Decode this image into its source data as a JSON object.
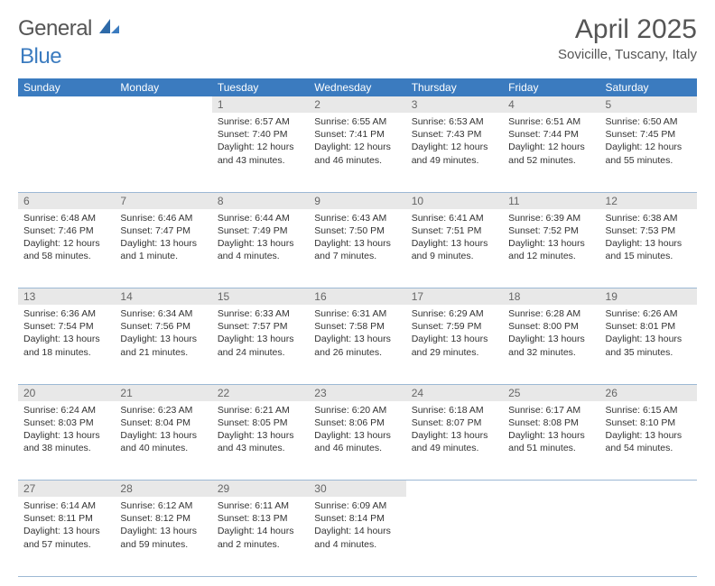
{
  "brand": {
    "part1": "General",
    "part2": "Blue"
  },
  "title": "April 2025",
  "location": "Sovicille, Tuscany, Italy",
  "theme": {
    "header_bg": "#3b7bbf",
    "header_fg": "#ffffff",
    "daynum_bg": "#e8e8e8",
    "daynum_fg": "#666666",
    "rule_color": "#9cb8d4",
    "text_color": "#333333",
    "page_bg": "#ffffff",
    "month_fontsize": 30,
    "dayhdr_fontsize": 12,
    "body_fontsize": 10.5
  },
  "day_headers": [
    "Sunday",
    "Monday",
    "Tuesday",
    "Wednesday",
    "Thursday",
    "Friday",
    "Saturday"
  ],
  "weeks": [
    [
      null,
      null,
      {
        "n": "1",
        "sr": "6:57 AM",
        "ss": "7:40 PM",
        "dl": "12 hours and 43 minutes."
      },
      {
        "n": "2",
        "sr": "6:55 AM",
        "ss": "7:41 PM",
        "dl": "12 hours and 46 minutes."
      },
      {
        "n": "3",
        "sr": "6:53 AM",
        "ss": "7:43 PM",
        "dl": "12 hours and 49 minutes."
      },
      {
        "n": "4",
        "sr": "6:51 AM",
        "ss": "7:44 PM",
        "dl": "12 hours and 52 minutes."
      },
      {
        "n": "5",
        "sr": "6:50 AM",
        "ss": "7:45 PM",
        "dl": "12 hours and 55 minutes."
      }
    ],
    [
      {
        "n": "6",
        "sr": "6:48 AM",
        "ss": "7:46 PM",
        "dl": "12 hours and 58 minutes."
      },
      {
        "n": "7",
        "sr": "6:46 AM",
        "ss": "7:47 PM",
        "dl": "13 hours and 1 minute."
      },
      {
        "n": "8",
        "sr": "6:44 AM",
        "ss": "7:49 PM",
        "dl": "13 hours and 4 minutes."
      },
      {
        "n": "9",
        "sr": "6:43 AM",
        "ss": "7:50 PM",
        "dl": "13 hours and 7 minutes."
      },
      {
        "n": "10",
        "sr": "6:41 AM",
        "ss": "7:51 PM",
        "dl": "13 hours and 9 minutes."
      },
      {
        "n": "11",
        "sr": "6:39 AM",
        "ss": "7:52 PM",
        "dl": "13 hours and 12 minutes."
      },
      {
        "n": "12",
        "sr": "6:38 AM",
        "ss": "7:53 PM",
        "dl": "13 hours and 15 minutes."
      }
    ],
    [
      {
        "n": "13",
        "sr": "6:36 AM",
        "ss": "7:54 PM",
        "dl": "13 hours and 18 minutes."
      },
      {
        "n": "14",
        "sr": "6:34 AM",
        "ss": "7:56 PM",
        "dl": "13 hours and 21 minutes."
      },
      {
        "n": "15",
        "sr": "6:33 AM",
        "ss": "7:57 PM",
        "dl": "13 hours and 24 minutes."
      },
      {
        "n": "16",
        "sr": "6:31 AM",
        "ss": "7:58 PM",
        "dl": "13 hours and 26 minutes."
      },
      {
        "n": "17",
        "sr": "6:29 AM",
        "ss": "7:59 PM",
        "dl": "13 hours and 29 minutes."
      },
      {
        "n": "18",
        "sr": "6:28 AM",
        "ss": "8:00 PM",
        "dl": "13 hours and 32 minutes."
      },
      {
        "n": "19",
        "sr": "6:26 AM",
        "ss": "8:01 PM",
        "dl": "13 hours and 35 minutes."
      }
    ],
    [
      {
        "n": "20",
        "sr": "6:24 AM",
        "ss": "8:03 PM",
        "dl": "13 hours and 38 minutes."
      },
      {
        "n": "21",
        "sr": "6:23 AM",
        "ss": "8:04 PM",
        "dl": "13 hours and 40 minutes."
      },
      {
        "n": "22",
        "sr": "6:21 AM",
        "ss": "8:05 PM",
        "dl": "13 hours and 43 minutes."
      },
      {
        "n": "23",
        "sr": "6:20 AM",
        "ss": "8:06 PM",
        "dl": "13 hours and 46 minutes."
      },
      {
        "n": "24",
        "sr": "6:18 AM",
        "ss": "8:07 PM",
        "dl": "13 hours and 49 minutes."
      },
      {
        "n": "25",
        "sr": "6:17 AM",
        "ss": "8:08 PM",
        "dl": "13 hours and 51 minutes."
      },
      {
        "n": "26",
        "sr": "6:15 AM",
        "ss": "8:10 PM",
        "dl": "13 hours and 54 minutes."
      }
    ],
    [
      {
        "n": "27",
        "sr": "6:14 AM",
        "ss": "8:11 PM",
        "dl": "13 hours and 57 minutes."
      },
      {
        "n": "28",
        "sr": "6:12 AM",
        "ss": "8:12 PM",
        "dl": "13 hours and 59 minutes."
      },
      {
        "n": "29",
        "sr": "6:11 AM",
        "ss": "8:13 PM",
        "dl": "14 hours and 2 minutes."
      },
      {
        "n": "30",
        "sr": "6:09 AM",
        "ss": "8:14 PM",
        "dl": "14 hours and 4 minutes."
      },
      null,
      null,
      null
    ]
  ],
  "labels": {
    "sunrise": "Sunrise:",
    "sunset": "Sunset:",
    "daylight": "Daylight:"
  }
}
